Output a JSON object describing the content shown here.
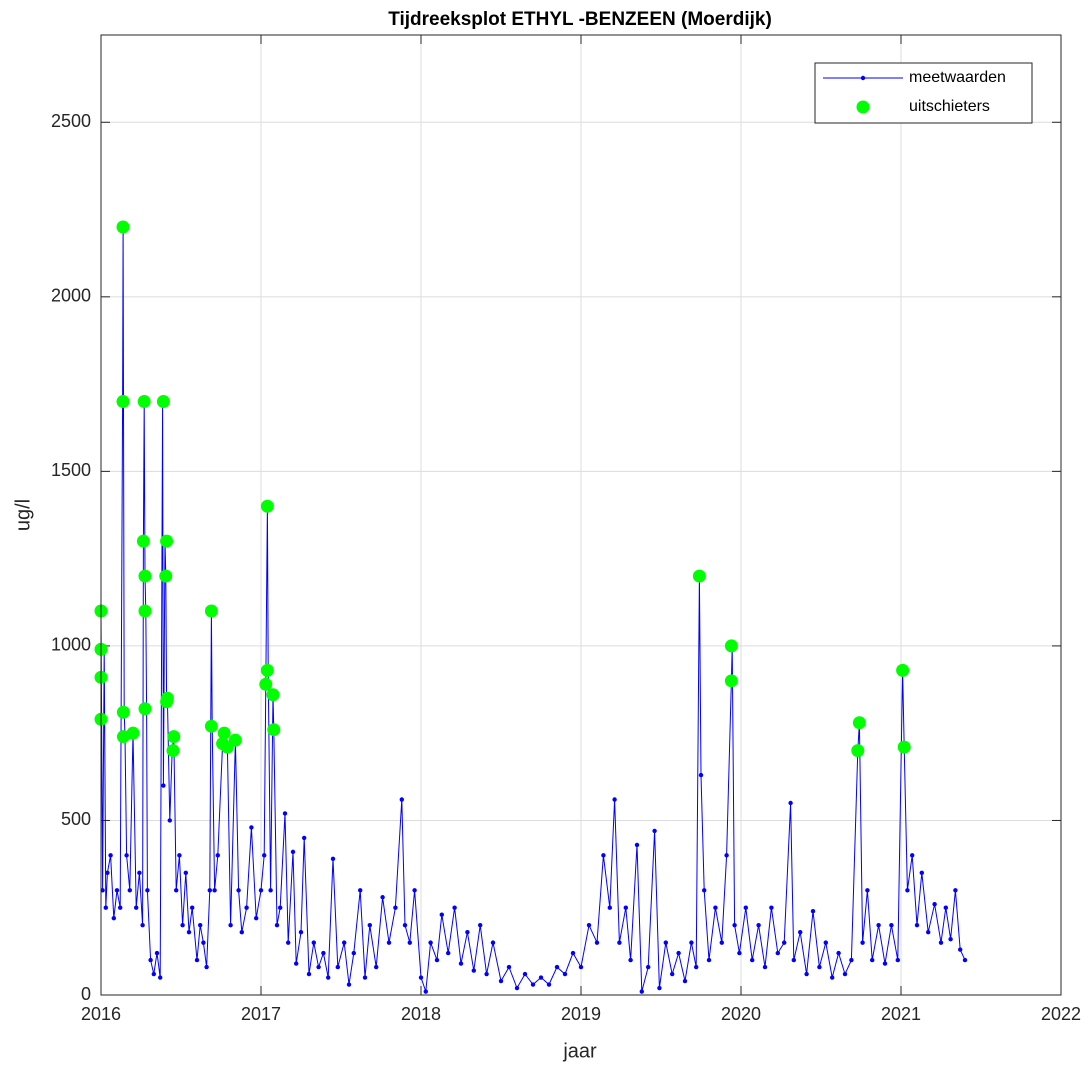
{
  "chart_data": {
    "type": "line",
    "title": "Tijdreeksplot ETHYL -BENZEEN (Moerdijk)",
    "x_label": "jaar",
    "y_label": "ug/l",
    "xlim": [
      2016,
      2022
    ],
    "xticks": [
      2016,
      2017,
      2018,
      2019,
      2020,
      2021,
      2022
    ],
    "ylim": [
      0,
      2750
    ],
    "yticks": [
      0,
      500,
      1000,
      1500,
      2000,
      2500
    ],
    "grid": true,
    "legend": "upper right",
    "series": [
      {
        "name": "meetwaarden",
        "color": "#0000ff",
        "style": "line-dot",
        "x": [
          2016.0,
          2016.01,
          2016.02,
          2016.03,
          2016.04,
          2016.06,
          2016.08,
          2016.1,
          2016.12,
          2016.135,
          2016.138,
          2016.145,
          2016.15,
          2016.16,
          2016.18,
          2016.2,
          2016.22,
          2016.24,
          2016.26,
          2016.265,
          2016.27,
          2016.275,
          2016.28,
          2016.285,
          2016.29,
          2016.31,
          2016.33,
          2016.35,
          2016.37,
          2016.385,
          2016.39,
          2016.4,
          2016.405,
          2016.41,
          2016.415,
          2016.43,
          2016.445,
          2016.455,
          2016.47,
          2016.49,
          2016.51,
          2016.53,
          2016.55,
          2016.57,
          2016.6,
          2016.62,
          2016.64,
          2016.66,
          2016.68,
          2016.69,
          2016.695,
          2016.71,
          2016.73,
          2016.76,
          2016.77,
          2016.79,
          2016.81,
          2016.84,
          2016.86,
          2016.88,
          2016.91,
          2016.94,
          2016.97,
          2017.0,
          2017.02,
          2017.03,
          2017.04,
          2017.045,
          2017.06,
          2017.075,
          2017.08,
          2017.1,
          2017.12,
          2017.15,
          2017.17,
          2017.2,
          2017.22,
          2017.25,
          2017.27,
          2017.3,
          2017.33,
          2017.36,
          2017.39,
          2017.42,
          2017.45,
          2017.48,
          2017.52,
          2017.55,
          2017.58,
          2017.62,
          2017.65,
          2017.68,
          2017.72,
          2017.76,
          2017.8,
          2017.84,
          2017.88,
          2017.9,
          2017.93,
          2017.96,
          2018.0,
          2018.03,
          2018.06,
          2018.1,
          2018.13,
          2018.17,
          2018.21,
          2018.25,
          2018.29,
          2018.33,
          2018.37,
          2018.41,
          2018.45,
          2018.5,
          2018.55,
          2018.6,
          2018.65,
          2018.7,
          2018.75,
          2018.8,
          2018.85,
          2018.9,
          2018.95,
          2019.0,
          2019.05,
          2019.1,
          2019.14,
          2019.18,
          2019.21,
          2019.24,
          2019.28,
          2019.31,
          2019.35,
          2019.38,
          2019.42,
          2019.46,
          2019.49,
          2019.53,
          2019.57,
          2019.61,
          2019.65,
          2019.69,
          2019.72,
          2019.74,
          2019.75,
          2019.77,
          2019.8,
          2019.84,
          2019.88,
          2019.91,
          2019.94,
          2019.945,
          2019.96,
          2019.99,
          2020.03,
          2020.07,
          2020.11,
          2020.15,
          2020.19,
          2020.23,
          2020.27,
          2020.31,
          2020.33,
          2020.37,
          2020.41,
          2020.45,
          2020.49,
          2020.53,
          2020.57,
          2020.61,
          2020.65,
          2020.69,
          2020.73,
          2020.74,
          2020.76,
          2020.79,
          2020.82,
          2020.86,
          2020.9,
          2020.94,
          2020.98,
          2021.01,
          2021.02,
          2021.04,
          2021.07,
          2021.1,
          2021.13,
          2021.17,
          2021.21,
          2021.25,
          2021.28,
          2021.31,
          2021.34,
          2021.37,
          2021.4
        ],
        "values": [
          1100,
          300,
          990,
          250,
          350,
          400,
          220,
          300,
          250,
          1700,
          2200,
          810,
          740,
          400,
          300,
          750,
          250,
          350,
          200,
          1300,
          1700,
          1200,
          1100,
          820,
          300,
          100,
          60,
          120,
          50,
          1700,
          600,
          1300,
          1200,
          840,
          850,
          500,
          700,
          740,
          300,
          400,
          200,
          350,
          180,
          250,
          100,
          200,
          150,
          80,
          300,
          1100,
          770,
          300,
          400,
          720,
          750,
          710,
          200,
          730,
          300,
          180,
          250,
          480,
          220,
          300,
          400,
          890,
          1400,
          930,
          300,
          860,
          760,
          200,
          250,
          520,
          150,
          410,
          90,
          180,
          450,
          60,
          150,
          80,
          120,
          50,
          390,
          80,
          150,
          30,
          120,
          300,
          50,
          200,
          80,
          280,
          150,
          250,
          560,
          200,
          150,
          300,
          50,
          10,
          150,
          100,
          230,
          120,
          250,
          90,
          180,
          70,
          200,
          60,
          150,
          40,
          80,
          20,
          60,
          30,
          50,
          30,
          80,
          60,
          120,
          80,
          200,
          150,
          400,
          250,
          560,
          150,
          250,
          100,
          430,
          10,
          80,
          470,
          20,
          150,
          60,
          120,
          40,
          150,
          80,
          1200,
          630,
          300,
          100,
          250,
          150,
          400,
          900,
          1000,
          200,
          120,
          250,
          100,
          200,
          80,
          250,
          120,
          150,
          550,
          100,
          180,
          60,
          240,
          80,
          150,
          50,
          120,
          60,
          100,
          700,
          780,
          150,
          300,
          100,
          200,
          90,
          200,
          100,
          930,
          710,
          300,
          400,
          200,
          350,
          180,
          260,
          150,
          250,
          160,
          300,
          130,
          100
        ]
      },
      {
        "name": "uitschieters",
        "color": "#00ff00",
        "style": "dot",
        "x": [
          2016.0,
          2016.0,
          2016.0,
          2016.0,
          2016.1375,
          2016.1375,
          2016.14,
          2016.14,
          2016.2,
          2016.27,
          2016.265,
          2016.275,
          2016.275,
          2016.275,
          2016.39,
          2016.41,
          2016.405,
          2016.415,
          2016.41,
          2016.455,
          2016.45,
          2016.69,
          2016.69,
          2016.76,
          2016.77,
          2016.79,
          2016.84,
          2017.04,
          2017.04,
          2017.03,
          2017.075,
          2017.08,
          2019.74,
          2019.94,
          2019.94,
          2020.74,
          2020.73,
          2021.01,
          2021.02
        ],
        "values": [
          1100,
          990,
          910,
          790,
          2200,
          1700,
          810,
          740,
          750,
          1700,
          1300,
          1200,
          1100,
          820,
          1700,
          1300,
          1200,
          850,
          840,
          740,
          700,
          1100,
          770,
          720,
          750,
          710,
          730,
          1400,
          930,
          890,
          860,
          760,
          1200,
          1000,
          900,
          780,
          700,
          930,
          710
        ]
      }
    ]
  }
}
